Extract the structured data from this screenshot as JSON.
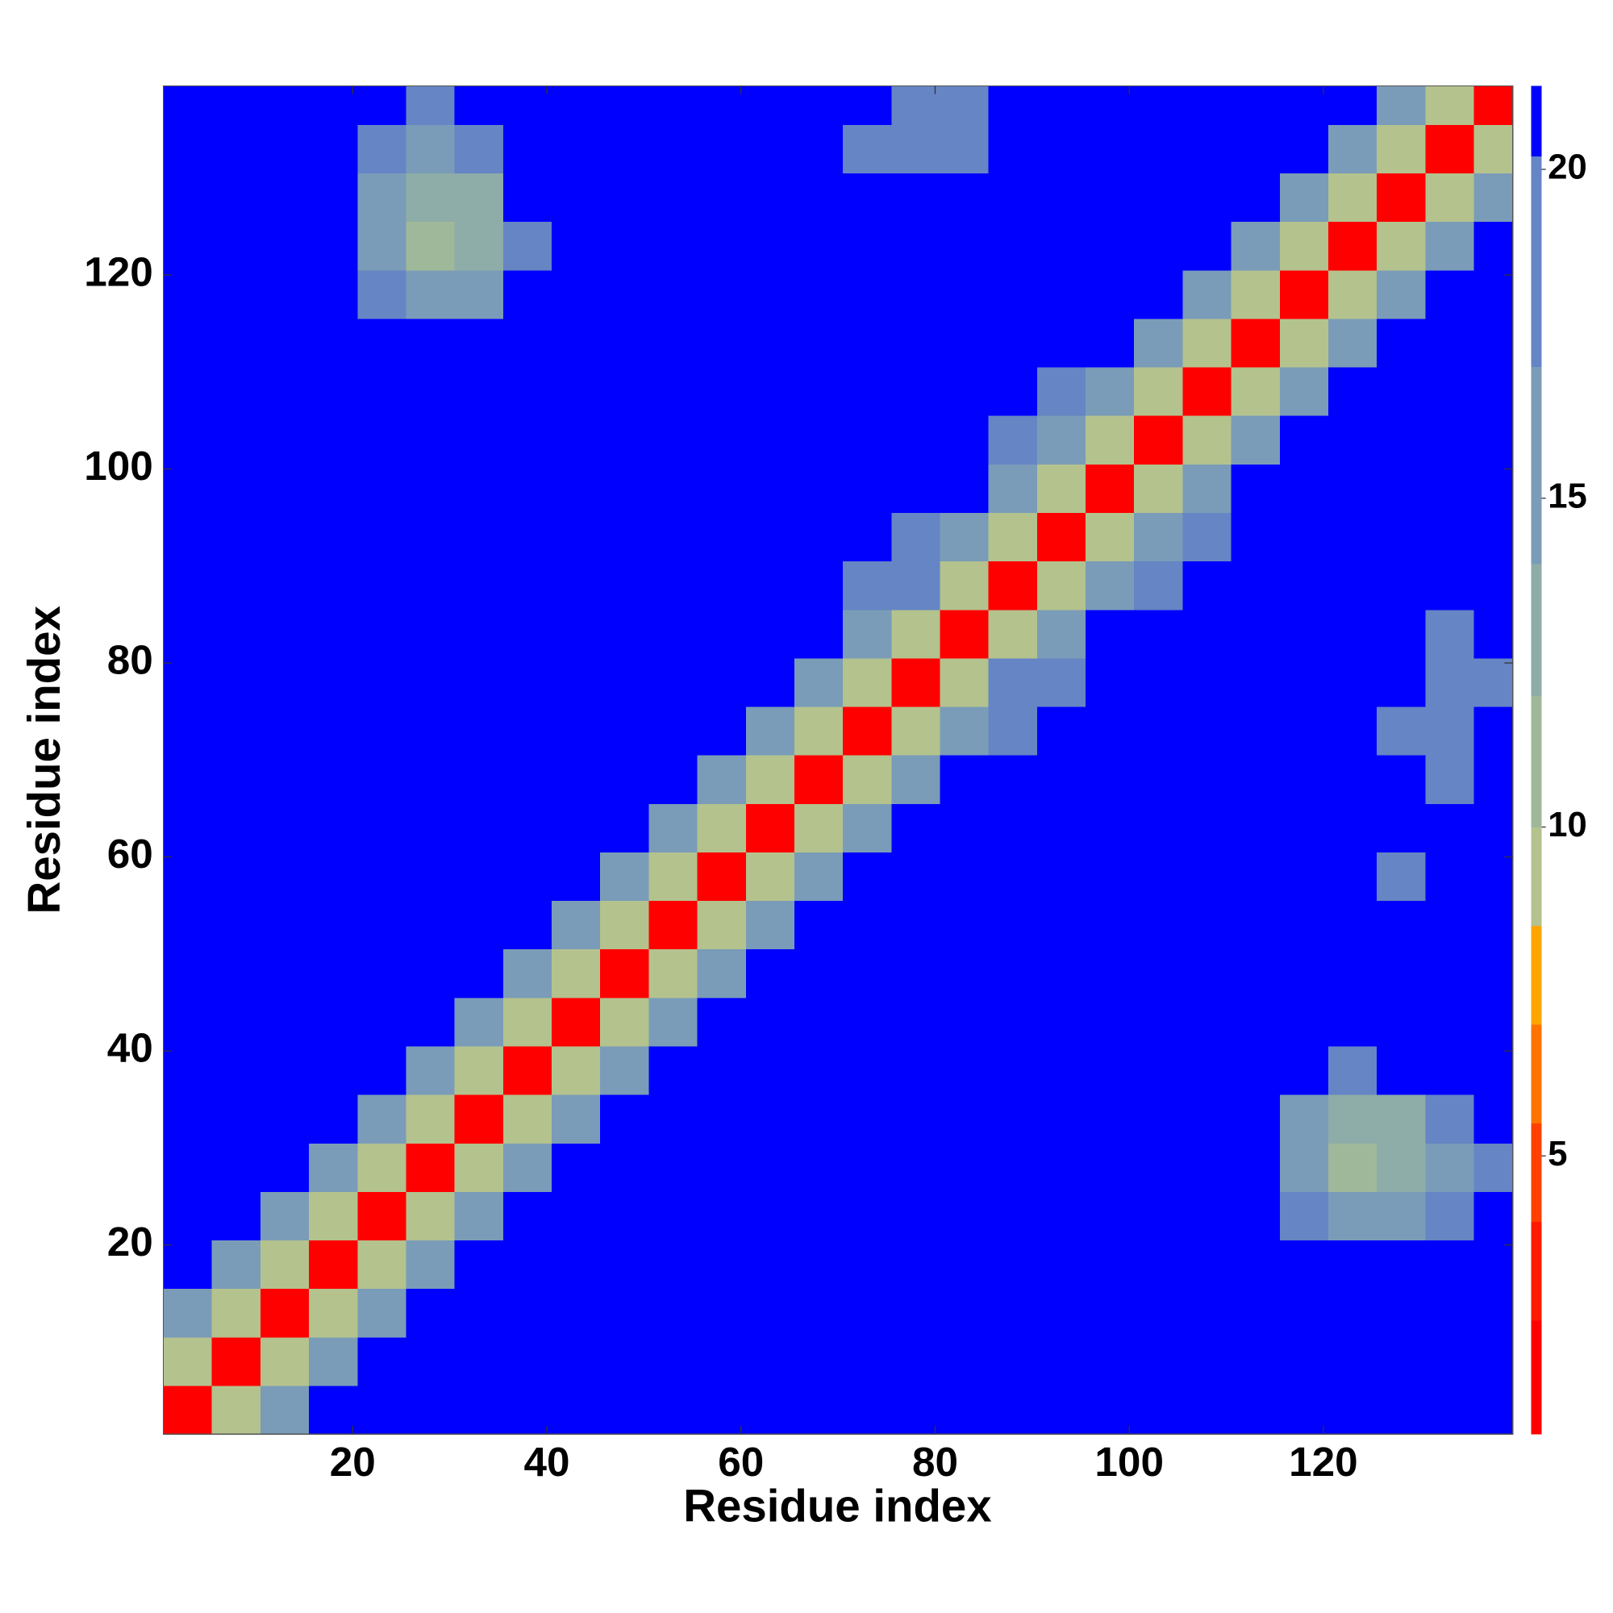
{
  "chart_data": {
    "type": "heatmap",
    "x_label": "Residue index",
    "y_label": "Residue index",
    "xlim": [
      0.5,
      139.5
    ],
    "ylim": [
      0.5,
      139.5
    ],
    "xticks": [
      20,
      40,
      60,
      80,
      100,
      120
    ],
    "yticks": [
      20,
      40,
      60,
      80,
      100,
      120
    ],
    "x_bins": [
      0.5,
      5.5,
      10.5,
      15.5,
      20.5,
      25.5,
      30.5,
      35.5,
      40.5,
      45.5,
      50.5,
      55.5,
      60.5,
      65.5,
      70.5,
      75.5,
      80.5,
      85.5,
      90.5,
      95.5,
      100.5,
      105.5,
      110.5,
      115.5,
      120.5,
      125.5,
      130.5,
      135.5,
      139.5
    ],
    "y_bins": [
      0.5,
      5.5,
      10.5,
      15.5,
      20.5,
      25.5,
      30.5,
      35.5,
      40.5,
      45.5,
      50.5,
      55.5,
      60.5,
      65.5,
      70.5,
      75.5,
      80.5,
      85.5,
      90.5,
      95.5,
      100.5,
      105.5,
      110.5,
      115.5,
      120.5,
      125.5,
      130.5,
      135.5,
      139.5
    ],
    "z": [
      [
        2,
        9,
        16,
        21,
        21,
        21,
        21,
        21,
        21,
        21,
        21,
        21,
        21,
        21,
        21,
        21,
        21,
        21,
        21,
        21,
        21,
        21,
        21,
        21,
        21,
        21,
        21,
        21
      ],
      [
        9,
        2,
        9,
        16,
        21,
        21,
        21,
        21,
        21,
        21,
        21,
        21,
        21,
        21,
        21,
        21,
        21,
        21,
        21,
        21,
        21,
        21,
        21,
        21,
        21,
        21,
        21,
        21
      ],
      [
        16,
        9,
        2,
        9,
        16,
        21,
        21,
        21,
        21,
        21,
        21,
        21,
        21,
        21,
        21,
        21,
        21,
        21,
        21,
        21,
        21,
        21,
        21,
        21,
        21,
        21,
        21,
        21
      ],
      [
        21,
        16,
        9,
        2,
        9,
        16,
        21,
        21,
        21,
        21,
        21,
        21,
        21,
        21,
        21,
        21,
        21,
        21,
        21,
        21,
        21,
        21,
        21,
        21,
        21,
        21,
        21,
        21
      ],
      [
        21,
        21,
        16,
        9,
        2,
        9,
        16,
        21,
        21,
        21,
        21,
        21,
        21,
        21,
        21,
        21,
        21,
        21,
        21,
        21,
        21,
        21,
        21,
        17,
        15,
        15,
        17,
        21
      ],
      [
        21,
        21,
        21,
        16,
        9,
        2,
        9,
        16,
        21,
        21,
        21,
        21,
        21,
        21,
        21,
        21,
        21,
        21,
        21,
        21,
        21,
        21,
        21,
        16,
        11,
        12,
        16,
        18
      ],
      [
        21,
        21,
        21,
        21,
        16,
        9,
        2,
        9,
        16,
        21,
        21,
        21,
        21,
        21,
        21,
        21,
        21,
        21,
        21,
        21,
        21,
        21,
        21,
        16,
        12,
        13,
        17,
        21
      ],
      [
        21,
        21,
        21,
        21,
        21,
        16,
        9,
        2,
        9,
        16,
        21,
        21,
        21,
        21,
        21,
        21,
        21,
        21,
        21,
        21,
        21,
        21,
        21,
        21,
        17,
        21,
        21,
        21
      ],
      [
        21,
        21,
        21,
        21,
        21,
        21,
        16,
        9,
        2,
        9,
        16,
        21,
        21,
        21,
        21,
        21,
        21,
        21,
        21,
        21,
        21,
        21,
        21,
        21,
        21,
        21,
        21,
        21
      ],
      [
        21,
        21,
        21,
        21,
        21,
        21,
        21,
        16,
        9,
        2,
        9,
        16,
        21,
        21,
        21,
        21,
        21,
        21,
        21,
        21,
        21,
        21,
        21,
        21,
        21,
        21,
        21,
        21
      ],
      [
        21,
        21,
        21,
        21,
        21,
        21,
        21,
        21,
        16,
        9,
        2,
        9,
        16,
        21,
        21,
        21,
        21,
        21,
        21,
        21,
        21,
        21,
        21,
        21,
        21,
        21,
        21,
        21
      ],
      [
        21,
        21,
        21,
        21,
        21,
        21,
        21,
        21,
        21,
        16,
        9,
        2,
        9,
        16,
        21,
        21,
        21,
        21,
        21,
        21,
        21,
        21,
        21,
        21,
        21,
        20,
        21,
        21
      ],
      [
        21,
        21,
        21,
        21,
        21,
        21,
        21,
        21,
        21,
        21,
        16,
        9,
        2,
        9,
        16,
        21,
        21,
        21,
        21,
        21,
        21,
        21,
        21,
        21,
        21,
        21,
        21,
        21
      ],
      [
        21,
        21,
        21,
        21,
        21,
        21,
        21,
        21,
        21,
        21,
        21,
        16,
        9,
        2,
        9,
        16,
        21,
        21,
        21,
        21,
        21,
        21,
        21,
        21,
        21,
        21,
        19,
        21
      ],
      [
        21,
        21,
        21,
        21,
        21,
        21,
        21,
        21,
        21,
        21,
        21,
        21,
        16,
        9,
        2,
        9,
        16,
        18,
        21,
        21,
        21,
        21,
        21,
        21,
        21,
        19,
        19,
        21
      ],
      [
        21,
        21,
        21,
        21,
        21,
        21,
        21,
        21,
        21,
        21,
        21,
        21,
        21,
        16,
        9,
        2,
        9,
        17,
        18,
        21,
        21,
        21,
        21,
        21,
        21,
        21,
        19,
        19
      ],
      [
        21,
        21,
        21,
        21,
        21,
        21,
        21,
        21,
        21,
        21,
        21,
        21,
        21,
        21,
        16,
        9,
        2,
        9,
        16,
        21,
        21,
        21,
        21,
        21,
        21,
        21,
        19,
        21
      ],
      [
        21,
        21,
        21,
        21,
        21,
        21,
        21,
        21,
        21,
        21,
        21,
        21,
        21,
        21,
        18,
        17,
        9,
        2,
        9,
        16,
        19,
        21,
        21,
        21,
        21,
        21,
        21,
        21
      ],
      [
        21,
        21,
        21,
        21,
        21,
        21,
        21,
        21,
        21,
        21,
        21,
        21,
        21,
        21,
        21,
        18,
        16,
        9,
        2,
        9,
        16,
        18,
        21,
        21,
        21,
        21,
        21,
        21
      ],
      [
        21,
        21,
        21,
        21,
        21,
        21,
        21,
        21,
        21,
        21,
        21,
        21,
        21,
        21,
        21,
        21,
        21,
        16,
        9,
        2,
        9,
        16,
        21,
        21,
        21,
        21,
        21,
        21
      ],
      [
        21,
        21,
        21,
        21,
        21,
        21,
        21,
        21,
        21,
        21,
        21,
        21,
        21,
        21,
        21,
        21,
        21,
        19,
        16,
        9,
        2,
        9,
        16,
        21,
        21,
        21,
        21,
        21
      ],
      [
        21,
        21,
        21,
        21,
        21,
        21,
        21,
        21,
        21,
        21,
        21,
        21,
        21,
        21,
        21,
        21,
        21,
        21,
        18,
        16,
        9,
        2,
        9,
        16,
        21,
        21,
        21,
        21
      ],
      [
        21,
        21,
        21,
        21,
        21,
        21,
        21,
        21,
        21,
        21,
        21,
        21,
        21,
        21,
        21,
        21,
        21,
        21,
        21,
        21,
        16,
        9,
        2,
        9,
        16,
        21,
        21,
        21
      ],
      [
        21,
        21,
        21,
        21,
        17,
        16,
        16,
        21,
        21,
        21,
        21,
        21,
        21,
        21,
        21,
        21,
        21,
        21,
        21,
        21,
        21,
        16,
        9,
        2,
        9,
        16,
        21,
        21
      ],
      [
        21,
        21,
        21,
        21,
        15,
        11,
        12,
        17,
        21,
        21,
        21,
        21,
        21,
        21,
        21,
        21,
        21,
        21,
        21,
        21,
        21,
        21,
        16,
        9,
        2,
        9,
        16,
        21
      ],
      [
        21,
        21,
        21,
        21,
        15,
        12,
        13,
        21,
        21,
        21,
        21,
        21,
        21,
        21,
        21,
        21,
        21,
        21,
        21,
        21,
        21,
        21,
        21,
        16,
        9,
        2,
        9,
        16
      ],
      [
        21,
        21,
        21,
        21,
        17,
        16,
        17,
        21,
        21,
        21,
        21,
        21,
        21,
        21,
        19,
        19,
        19,
        21,
        21,
        21,
        21,
        21,
        21,
        21,
        16,
        9,
        2,
        9
      ],
      [
        21,
        21,
        21,
        21,
        21,
        18,
        21,
        21,
        21,
        21,
        21,
        21,
        21,
        21,
        21,
        19,
        19,
        21,
        21,
        21,
        21,
        21,
        21,
        21,
        21,
        16,
        9,
        2
      ]
    ],
    "colorbar": {
      "levels": [
        0.77,
        2.5,
        4,
        5.5,
        7,
        8.5,
        10,
        12,
        14,
        17,
        20.2,
        21.27
      ],
      "colors": [
        "#ff0000",
        "#ff1a00",
        "#ff4000",
        "#ff7300",
        "#ffa500",
        "#b4c28e",
        "#a0b89a",
        "#8eaca8",
        "#7a9cb8",
        "#6585c4",
        "#0000ff"
      ],
      "ticks": [
        5,
        10,
        15,
        20
      ]
    }
  }
}
